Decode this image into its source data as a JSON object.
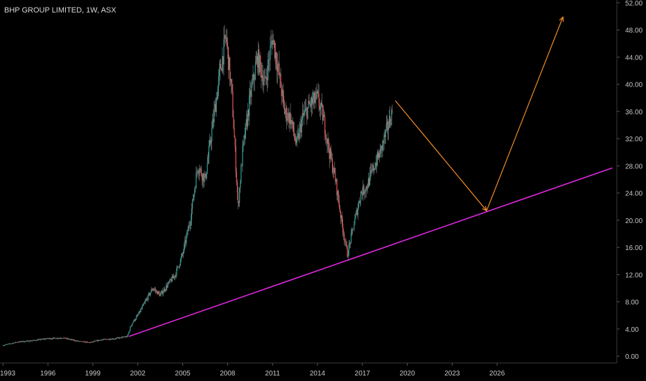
{
  "chart_data": {
    "type": "candlestick",
    "title": "BHP GROUP LIMITED, 1W, ASX",
    "xlabel": "",
    "ylabel": "",
    "xlim": [
      1992.8,
      2034.0
    ],
    "ylim": [
      -1.0,
      52.4
    ],
    "y_axis_position": "right",
    "grid": false,
    "y_ticks": [
      "0.00",
      "4.00",
      "8.00",
      "12.00",
      "16.00",
      "20.00",
      "24.00",
      "28.00",
      "32.00",
      "36.00",
      "40.00",
      "44.00",
      "48.00",
      "52.00"
    ],
    "y_tick_values": [
      0,
      4,
      8,
      12,
      16,
      20,
      24,
      28,
      32,
      36,
      40,
      44,
      48,
      52
    ],
    "x_ticks": [
      "1993",
      "1996",
      "1999",
      "2002",
      "2005",
      "2008",
      "2011",
      "2014",
      "2017",
      "2020",
      "2023",
      "2026"
    ],
    "x_tick_values": [
      1993,
      1996,
      1999,
      2002,
      2005,
      2008,
      2011,
      2014,
      2017,
      2020,
      2023,
      2026
    ],
    "price_path": [
      [
        1993.0,
        1.6
      ],
      [
        1994.0,
        2.1
      ],
      [
        1995.0,
        2.3
      ],
      [
        1996.0,
        2.6
      ],
      [
        1997.0,
        2.7
      ],
      [
        1998.0,
        2.2
      ],
      [
        1998.8,
        2.0
      ],
      [
        1999.5,
        2.4
      ],
      [
        2000.5,
        2.6
      ],
      [
        2001.3,
        2.9
      ],
      [
        2001.6,
        4.8
      ],
      [
        2002.0,
        6.0
      ],
      [
        2002.5,
        8.0
      ],
      [
        2003.0,
        10.0
      ],
      [
        2003.5,
        9.0
      ],
      [
        2004.0,
        10.5
      ],
      [
        2004.5,
        12.0
      ],
      [
        2005.0,
        15.0
      ],
      [
        2005.5,
        20.0
      ],
      [
        2006.0,
        28.0
      ],
      [
        2006.5,
        26.0
      ],
      [
        2007.0,
        34.0
      ],
      [
        2007.5,
        42.0
      ],
      [
        2007.9,
        47.0
      ],
      [
        2008.3,
        38.0
      ],
      [
        2008.7,
        22.0
      ],
      [
        2009.0,
        30.0
      ],
      [
        2009.5,
        38.0
      ],
      [
        2010.0,
        44.0
      ],
      [
        2010.5,
        40.0
      ],
      [
        2011.0,
        47.0
      ],
      [
        2011.4,
        42.0
      ],
      [
        2011.8,
        36.0
      ],
      [
        2012.2,
        35.0
      ],
      [
        2012.6,
        31.0
      ],
      [
        2013.0,
        35.0
      ],
      [
        2013.5,
        37.0
      ],
      [
        2014.0,
        38.0
      ],
      [
        2014.4,
        35.0
      ],
      [
        2014.8,
        30.0
      ],
      [
        2015.2,
        26.0
      ],
      [
        2015.6,
        20.0
      ],
      [
        2016.0,
        15.0
      ],
      [
        2016.5,
        20.0
      ],
      [
        2016.9,
        24.0
      ],
      [
        2017.3,
        25.0
      ],
      [
        2017.8,
        28.0
      ],
      [
        2018.2,
        30.0
      ],
      [
        2018.6,
        33.0
      ],
      [
        2019.0,
        36.0
      ]
    ],
    "annotations": [
      {
        "type": "trendline",
        "color": "#e028e0",
        "points": [
          [
            2001.4,
            2.9
          ],
          [
            2033.7,
            27.7
          ]
        ]
      },
      {
        "type": "arrow",
        "color": "#f28c28",
        "points": [
          [
            2019.2,
            37.6
          ],
          [
            2025.3,
            21.4
          ]
        ]
      },
      {
        "type": "arrow",
        "color": "#f28c28",
        "points": [
          [
            2025.3,
            21.4
          ],
          [
            2030.4,
            49.9
          ]
        ]
      }
    ],
    "colors": {
      "up": "#26a69a",
      "down": "#ef5350",
      "wick": "#8c8c8c",
      "axis_text": "#c8c8c8"
    }
  }
}
